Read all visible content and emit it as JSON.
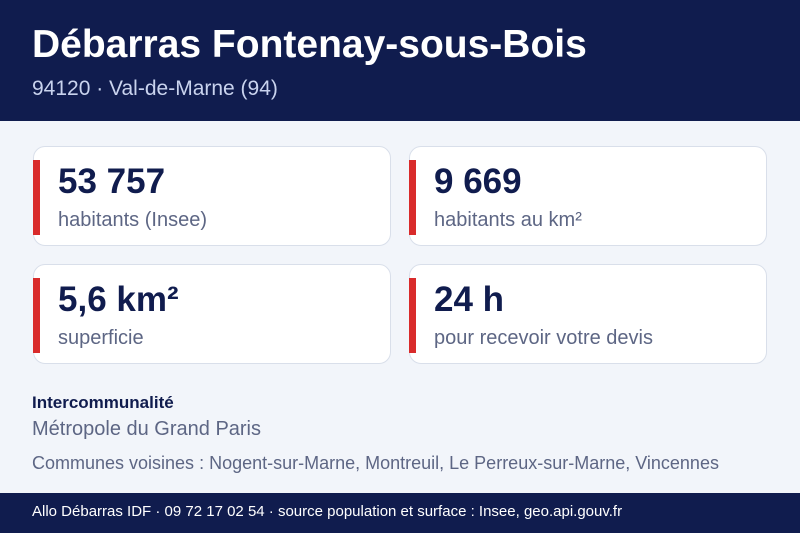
{
  "header": {
    "title": "Débarras Fontenay-sous-Bois",
    "subtitle": "94120 · Val-de-Marne (94)"
  },
  "stats": [
    {
      "value": "53 757",
      "label": "habitants (Insee)"
    },
    {
      "value": "9 669",
      "label": "habitants au km²"
    },
    {
      "value": "5,6 km²",
      "label": "superficie"
    },
    {
      "value": "24 h",
      "label": "pour recevoir votre devis"
    }
  ],
  "intercommunalite": {
    "heading": "Intercommunalité",
    "value": "Métropole du Grand Paris"
  },
  "neighbors": "Communes voisines : Nogent-sur-Marne, Montreuil, Le Perreux-sur-Marne, Vincennes",
  "footer": "Allo Débarras IDF · 09 72 17 02 54 · source population et surface : Insee, geo.api.gouv.fr",
  "colors": {
    "navy": "#101c4e",
    "accent_red": "#d92b2b",
    "background": "#f2f5fa",
    "muted_text": "#5d6684"
  }
}
